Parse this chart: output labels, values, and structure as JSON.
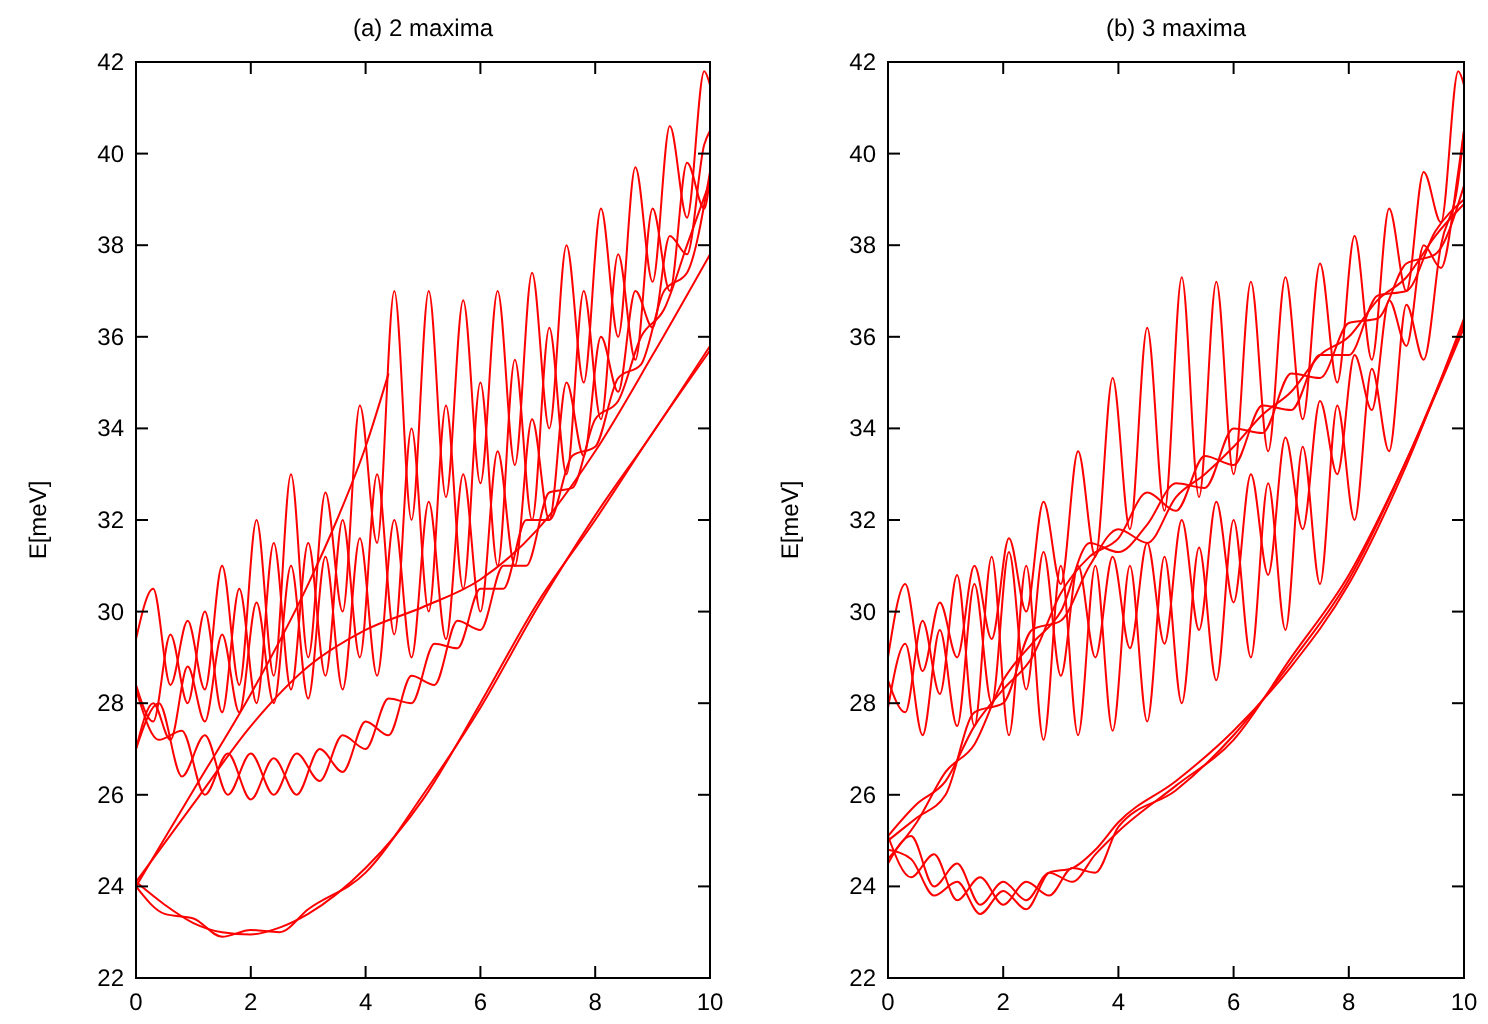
{
  "chart_data": [
    {
      "type": "line",
      "title": "(a) 2 maxima",
      "ylabel": "E[meV]",
      "xlim": [
        0,
        10
      ],
      "ylim": [
        22,
        42
      ],
      "xticks": [
        0,
        2,
        4,
        6,
        8,
        10
      ],
      "yticks": [
        22,
        24,
        26,
        28,
        30,
        32,
        34,
        36,
        38,
        40,
        42
      ],
      "series": [
        {
          "color": "#ff0000",
          "x": [
            0,
            0.5,
            1,
            1.5,
            2,
            2.5,
            3,
            4,
            5,
            6,
            7,
            8,
            9,
            10
          ],
          "values": [
            24.1,
            23.6,
            23.2,
            23,
            22.95,
            23.1,
            23.4,
            24.4,
            25.9,
            28,
            30.2,
            32,
            33.9,
            35.7
          ]
        },
        {
          "color": "#ff0000",
          "x": [
            0,
            0.5,
            1,
            1.5,
            2,
            2.5,
            3,
            4,
            5,
            6,
            7,
            8,
            9,
            10
          ],
          "values": [
            24,
            23.4,
            23.3,
            22.9,
            23.05,
            23,
            23.5,
            24.3,
            26,
            27.9,
            30.1,
            32.1,
            33.9,
            35.8
          ]
        },
        {
          "color": "#ff0000",
          "x": [
            0,
            1,
            2,
            3,
            3.5,
            4,
            4.4
          ],
          "values": [
            24,
            26.1,
            28.2,
            30.6,
            32,
            33.6,
            35.2
          ]
        },
        {
          "color": "#ff0000",
          "x": [
            0,
            1,
            2,
            3,
            4,
            5,
            6,
            7,
            8,
            9,
            10
          ],
          "values": [
            24.1,
            25.8,
            27.5,
            28.8,
            29.6,
            30.1,
            30.7,
            31.8,
            33.5,
            35.6,
            37.8
          ]
        },
        {
          "color": "#ff0000",
          "x": [
            0,
            0.4,
            0.8,
            1.2,
            1.6,
            2,
            2.4,
            2.8,
            3.2,
            3.6,
            4,
            4.4,
            4.8,
            5.2,
            5.6,
            6,
            6.4,
            6.8,
            7.2,
            7.6,
            8,
            8.4,
            8.8,
            9.2,
            9.6,
            10
          ],
          "values": [
            28.3,
            27.2,
            27.4,
            26,
            26.9,
            25.9,
            26.8,
            26,
            27,
            26.5,
            27.6,
            27.3,
            28.6,
            28.4,
            29.8,
            29.6,
            31,
            31,
            32.6,
            32.7,
            34.2,
            34.6,
            36,
            36.6,
            38,
            39.4
          ]
        },
        {
          "color": "#ff0000",
          "x": [
            0,
            0.4,
            0.8,
            1.2,
            1.6,
            2,
            2.4,
            2.8,
            3.2,
            3.6,
            4,
            4.4,
            4.8,
            5.2,
            5.6,
            6,
            6.4,
            6.8,
            7.2,
            7.6,
            8,
            8.4,
            8.8,
            9.2,
            9.6,
            10
          ],
          "values": [
            27,
            28,
            26.4,
            27.3,
            26,
            26.9,
            26,
            26.9,
            26.3,
            27.3,
            27,
            28.1,
            28,
            29.3,
            29.2,
            30.5,
            30.5,
            32,
            32,
            33.4,
            33.6,
            35.1,
            35.4,
            37,
            37.4,
            39.6
          ]
        },
        {
          "color": "#ff0000",
          "x": [
            0,
            0.3,
            0.6,
            0.9,
            1.2,
            1.5,
            1.8,
            2.1,
            2.4,
            2.7,
            3,
            3.3,
            3.6,
            3.9,
            4.2,
            4.5,
            4.8,
            5.1,
            5.4,
            5.7,
            6,
            6.3,
            6.6,
            6.9,
            7.2,
            7.5,
            7.8,
            8.1,
            8.4,
            8.7,
            9,
            9.3,
            9.6,
            9.9,
            10
          ],
          "values": [
            29.4,
            30.5,
            28.4,
            29.8,
            28.3,
            31,
            28.4,
            32,
            28.6,
            33,
            29,
            32.6,
            30,
            34.5,
            31.5,
            37,
            32,
            37,
            32.5,
            36.8,
            32.8,
            37,
            33.2,
            37.4,
            34,
            38,
            35,
            38.8,
            36,
            39.7,
            37.2,
            40.6,
            38.6,
            41.8,
            41.5
          ]
        },
        {
          "color": "#ff0000",
          "x": [
            0,
            0.3,
            0.6,
            0.9,
            1.2,
            1.5,
            1.8,
            2.1,
            2.4,
            2.7,
            3,
            3.3,
            3.6,
            3.9,
            4.2,
            4.5,
            4.8,
            5.1,
            5.4,
            5.7,
            6,
            6.3,
            6.6,
            6.9,
            7.2,
            7.5,
            7.8,
            8.1,
            8.4,
            8.7,
            9,
            9.3,
            9.6,
            9.9,
            10
          ],
          "values": [
            28.4,
            27.6,
            29.5,
            28,
            30,
            27.8,
            30.5,
            28,
            31.5,
            28.3,
            31.5,
            28.6,
            32,
            29,
            33,
            29.5,
            34,
            30,
            34.5,
            30.5,
            35,
            31,
            35.5,
            32,
            36.2,
            33,
            37,
            34.2,
            37.8,
            35.5,
            38.8,
            37,
            39.8,
            38.8,
            39.5
          ]
        },
        {
          "color": "#ff0000",
          "x": [
            0,
            0.3,
            0.6,
            0.9,
            1.2,
            1.5,
            1.8,
            2.1,
            2.4,
            2.7,
            3,
            3.3,
            3.6,
            3.9,
            4.2,
            4.5,
            4.8,
            5.1,
            5.4,
            5.7,
            6,
            6.3,
            6.6,
            6.9,
            7.2,
            7.5,
            7.8,
            8.1,
            8.4,
            8.7,
            9,
            9.3,
            9.6,
            9.9,
            10
          ],
          "values": [
            27,
            28,
            27.2,
            28.8,
            27.6,
            29.5,
            27.8,
            30.2,
            28,
            31,
            28.1,
            31.2,
            28.3,
            31.6,
            28.6,
            32,
            29,
            32.4,
            29.4,
            33,
            30,
            33.5,
            31,
            34.2,
            32,
            35,
            33.4,
            36,
            34.8,
            37,
            36.2,
            38.2,
            37.8,
            40.2,
            40.5
          ]
        }
      ]
    },
    {
      "type": "line",
      "title": "(b) 3 maxima",
      "ylabel": "E[meV]",
      "xlim": [
        0,
        10
      ],
      "ylim": [
        22,
        42
      ],
      "xticks": [
        0,
        2,
        4,
        6,
        8,
        10
      ],
      "yticks": [
        22,
        24,
        26,
        28,
        30,
        32,
        34,
        36,
        38,
        40,
        42
      ],
      "series": [
        {
          "color": "#ff0000",
          "x": [
            0,
            0.4,
            0.8,
            1.2,
            1.6,
            2,
            2.4,
            2.8,
            3.2,
            3.6,
            4,
            5,
            6,
            7,
            8,
            9,
            10
          ],
          "values": [
            25.1,
            24.2,
            24.7,
            23.7,
            24.2,
            23.6,
            24.1,
            23.8,
            24.4,
            24.3,
            25.3,
            26.1,
            27.3,
            28.9,
            30.7,
            33.3,
            36.3
          ]
        },
        {
          "color": "#ff0000",
          "x": [
            0,
            0.4,
            0.8,
            1.2,
            1.6,
            2,
            2.4,
            2.8,
            3.2,
            3.6,
            4,
            5,
            6,
            7,
            8,
            9,
            10
          ],
          "values": [
            24.5,
            25.1,
            24,
            24.5,
            23.6,
            24.1,
            23.7,
            24.3,
            24.1,
            24.7,
            25.2,
            26.2,
            27.2,
            29,
            30.8,
            33.3,
            36.2
          ]
        },
        {
          "color": "#ff0000",
          "x": [
            0,
            0.4,
            0.8,
            1.2,
            1.6,
            2,
            2.4,
            2.8,
            3.2,
            3.6,
            4,
            5,
            6,
            7,
            8,
            9,
            10
          ],
          "values": [
            24.8,
            24.6,
            23.8,
            24.1,
            23.4,
            23.9,
            23.5,
            24.3,
            24.4,
            24.8,
            25.4,
            26.3,
            27.4,
            28.8,
            30.6,
            33.2,
            36.4
          ]
        },
        {
          "color": "#ff0000",
          "x": [
            0,
            0.5,
            1,
            1.5,
            2,
            2.5,
            3,
            3.5,
            4,
            4.5,
            5,
            5.5,
            6,
            6.5,
            7,
            7.5,
            8,
            8.5,
            9,
            9.5,
            10
          ],
          "values": [
            25.1,
            25.8,
            26.3,
            27.5,
            28.3,
            29,
            30.4,
            31.2,
            31.6,
            32.6,
            32.2,
            33.4,
            33.2,
            34.5,
            34.4,
            35.6,
            35.6,
            36.9,
            37,
            38.3,
            39
          ]
        },
        {
          "color": "#ff0000",
          "x": [
            0,
            0.5,
            1,
            1.5,
            2,
            2.5,
            3,
            3.5,
            4,
            4.5,
            5,
            5.5,
            6,
            6.5,
            7,
            7.5,
            8,
            8.5,
            9,
            9.5,
            10
          ],
          "values": [
            24.6,
            25.4,
            26.5,
            27.1,
            28.5,
            29.3,
            30,
            31.5,
            31.3,
            31.9,
            32.8,
            32.7,
            34,
            33.9,
            35.2,
            35.1,
            36.3,
            36.4,
            37.6,
            37.8,
            39.3
          ]
        },
        {
          "color": "#ff0000",
          "x": [
            0,
            0.5,
            1,
            1.5,
            2,
            2.5,
            3,
            3.5,
            4,
            4.5,
            5,
            5.5,
            6,
            6.5,
            7,
            7.5,
            8,
            8.5,
            9,
            9.5,
            10
          ],
          "values": [
            25,
            25.5,
            26,
            27.8,
            28,
            29.6,
            29.8,
            31,
            31.8,
            31.5,
            32.5,
            33,
            33.6,
            34.3,
            34.8,
            35.6,
            36,
            36.8,
            37.3,
            38.2,
            38.9
          ]
        },
        {
          "color": "#ff0000",
          "x": [
            0,
            0.3,
            0.6,
            0.9,
            1.2,
            1.5,
            1.8,
            2.1,
            2.4,
            2.7,
            3,
            3.3,
            3.6,
            3.9,
            4.2,
            4.5,
            4.8,
            5.1,
            5.4,
            5.7,
            6,
            6.3,
            6.6,
            6.9,
            7.2,
            7.5,
            7.8,
            8.1,
            8.4,
            8.7,
            9,
            9.3,
            9.6,
            9.9,
            10
          ],
          "values": [
            29,
            30.6,
            28.7,
            30.2,
            29,
            31,
            29.4,
            31.6,
            30,
            32.4,
            30.6,
            33.5,
            31.2,
            35.1,
            31.8,
            36.2,
            32.2,
            37.3,
            32.5,
            37.2,
            33,
            37.2,
            33.5,
            37.3,
            34.2,
            37.6,
            35,
            38.2,
            35.5,
            38.8,
            37,
            39.6,
            38.5,
            41.8,
            41.5
          ]
        },
        {
          "color": "#ff0000",
          "x": [
            0,
            0.3,
            0.6,
            0.9,
            1.2,
            1.5,
            1.8,
            2.1,
            2.4,
            2.7,
            3,
            3.3,
            3.6,
            3.9,
            4.2,
            4.5,
            4.8,
            5.1,
            5.4,
            5.7,
            6,
            6.3,
            6.6,
            6.9,
            7.2,
            7.5,
            7.8,
            8.1,
            8.4,
            8.7,
            9,
            9.3,
            9.6,
            9.9,
            10
          ],
          "values": [
            28.5,
            27.8,
            29.8,
            28.2,
            30.8,
            27.5,
            31.2,
            27.3,
            31,
            27.2,
            31,
            27.3,
            31,
            27.4,
            31,
            27.6,
            31.2,
            28,
            31.4,
            28.5,
            32,
            29,
            32.8,
            29.6,
            33.6,
            30.6,
            34.5,
            32,
            35.3,
            33.5,
            36.7,
            35.5,
            38,
            39.4,
            40.5
          ]
        },
        {
          "color": "#ff0000",
          "x": [
            0,
            0.3,
            0.6,
            0.9,
            1.2,
            1.5,
            1.8,
            2.1,
            2.4,
            2.7,
            3,
            3.3,
            3.6,
            3.9,
            4.2,
            4.5,
            4.8,
            5.1,
            5.4,
            5.7,
            6,
            6.3,
            6.6,
            6.9,
            7.2,
            7.5,
            7.8,
            8.1,
            8.4,
            8.7,
            9,
            9.3,
            9.6,
            9.9,
            10
          ],
          "values": [
            27.9,
            29.3,
            27.3,
            29.6,
            27.5,
            30.6,
            28,
            31.3,
            28.3,
            31.3,
            28.6,
            31,
            29,
            31.2,
            29.2,
            31.5,
            29.3,
            32,
            29.6,
            32.4,
            30.2,
            33,
            30.8,
            33.8,
            31.8,
            34.6,
            33,
            35.6,
            34.4,
            36.8,
            35.8,
            38,
            37.5,
            39.6,
            40.5
          ]
        }
      ]
    }
  ]
}
